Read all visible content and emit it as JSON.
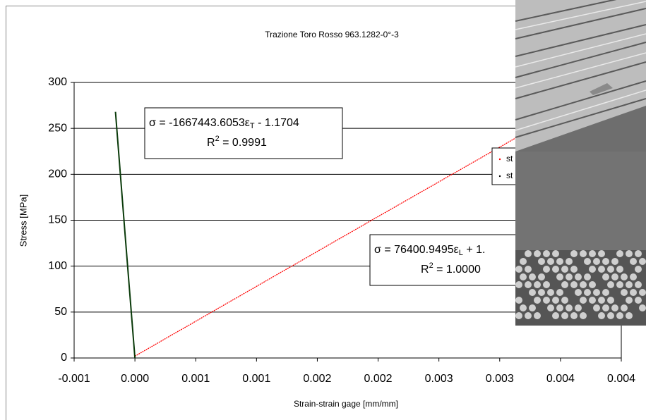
{
  "chart_data": {
    "type": "scatter",
    "title": "Trazione Toro Rosso 963.1282-0°-3",
    "x_label": "Strain-strain gage [mm/mm]",
    "y_label": "Stress [MPa]",
    "xlim": [
      -0.0005,
      0.004
    ],
    "ylim": [
      0,
      300
    ],
    "xticks": [
      {
        "value": -0.0005,
        "label": "-0.001"
      },
      {
        "value": 0,
        "label": "0.000"
      },
      {
        "value": 0.0005,
        "label": "0.001"
      },
      {
        "value": 0.001,
        "label": "0.001"
      },
      {
        "value": 0.0015,
        "label": "0.002"
      },
      {
        "value": 0.002,
        "label": "0.002"
      },
      {
        "value": 0.0025,
        "label": "0.003"
      },
      {
        "value": 0.003,
        "label": "0.003"
      },
      {
        "value": 0.0035,
        "label": "0.004"
      },
      {
        "value": 0.004,
        "label": "0.004"
      }
    ],
    "yticks": [
      0,
      50,
      100,
      150,
      200,
      250,
      300
    ],
    "grid": true,
    "series": [
      {
        "name": "st",
        "color": "#ff0000",
        "x": [
          0,
          0.001,
          0.002,
          0.00327
        ],
        "values": [
          2,
          78,
          154,
          250
        ]
      },
      {
        "name": "st",
        "color": "#000000",
        "x": [
          0,
          -8e-05,
          -0.00016
        ],
        "values": [
          0,
          133,
          268
        ]
      }
    ],
    "annotations": [
      {
        "parts": [
          "σ = -1667443.6053ε",
          "T",
          " - 1.1704"
        ],
        "r2": [
          "R",
          "2",
          " = 0.9991"
        ]
      },
      {
        "parts": [
          "σ = 76400.9495ε",
          "L",
          " + 1."
        ],
        "r2": [
          "R",
          "2",
          " = 1.0000"
        ]
      }
    ]
  }
}
